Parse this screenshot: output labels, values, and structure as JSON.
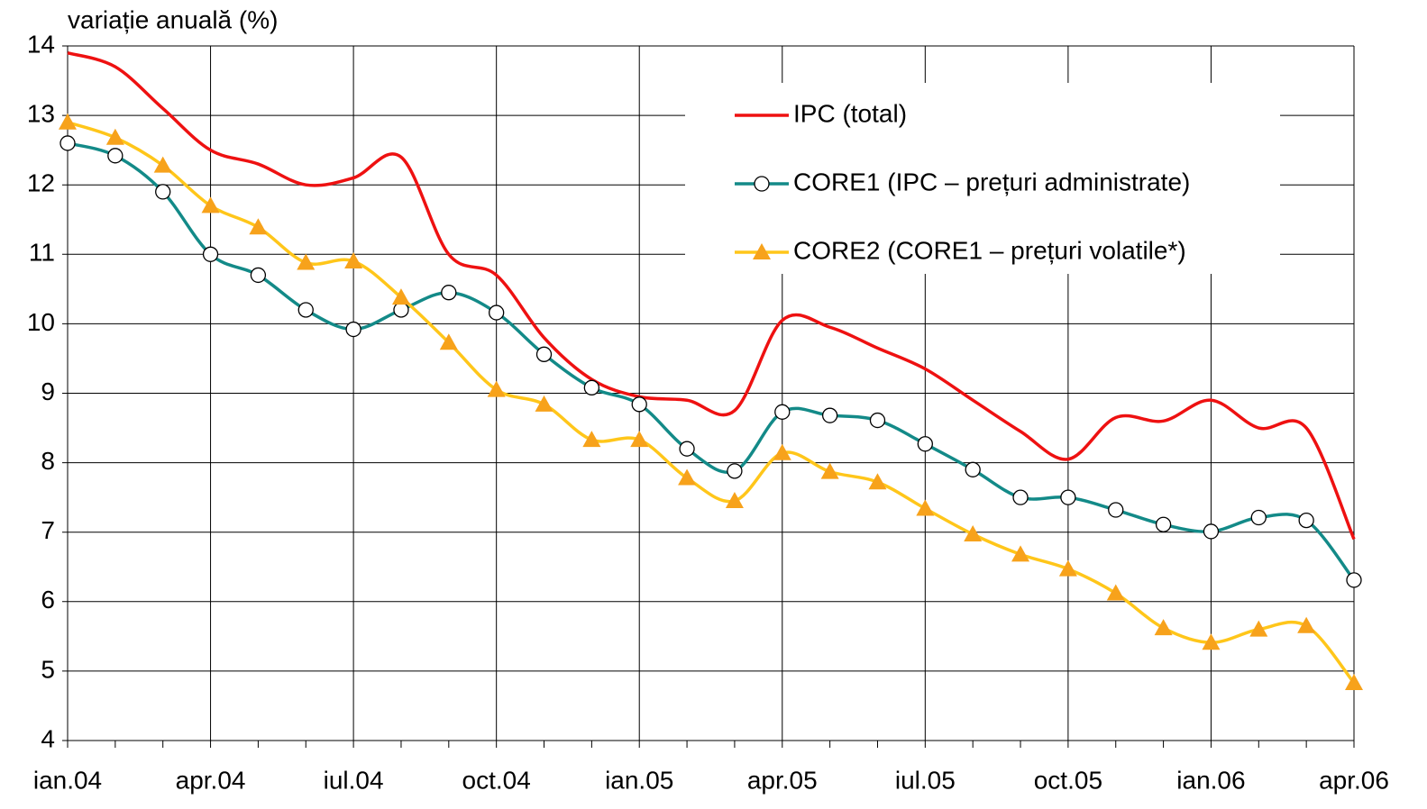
{
  "chart_data": {
    "type": "line",
    "ylabel": "variație anuală (%)",
    "categories": [
      "ian.04",
      null,
      null,
      "apr.04",
      null,
      null,
      "iul.04",
      null,
      null,
      "oct.04",
      null,
      null,
      "ian.05",
      null,
      null,
      "apr.05",
      null,
      null,
      "iul.05",
      null,
      null,
      "oct.05",
      null,
      null,
      "ian.06",
      null,
      null,
      "apr.06"
    ],
    "ylim": [
      4,
      14
    ],
    "yticks": [
      4,
      5,
      6,
      7,
      8,
      9,
      10,
      11,
      12,
      13,
      14
    ],
    "grid": true,
    "legend": "upper right",
    "series": [
      {
        "name": "IPC (total)",
        "color": "#ee1111",
        "marker": "none",
        "values": [
          13.9,
          13.7,
          13.1,
          12.5,
          12.3,
          12.0,
          12.1,
          12.4,
          11.0,
          10.7,
          9.8,
          9.2,
          8.95,
          8.9,
          8.75,
          10.05,
          9.95,
          9.65,
          9.35,
          8.9,
          8.45,
          8.05,
          8.65,
          8.6,
          8.9,
          8.5,
          8.5,
          6.9
        ]
      },
      {
        "name": "CORE1 (IPC – prețuri administrate)",
        "color": "#138a88",
        "marker": "circle",
        "values": [
          12.6,
          12.42,
          11.9,
          11.0,
          10.7,
          10.2,
          9.92,
          10.2,
          10.45,
          10.16,
          9.56,
          9.08,
          8.84,
          8.2,
          7.88,
          8.73,
          8.68,
          8.61,
          8.27,
          7.9,
          7.5,
          7.5,
          7.32,
          7.11,
          7.01,
          7.21,
          7.17,
          6.31
        ]
      },
      {
        "name": "CORE2 (CORE1 – prețuri volatile*)",
        "color": "#ffc61a",
        "marker": "triangle",
        "marker_color": "#f7a21b",
        "values": [
          12.9,
          12.68,
          12.28,
          11.7,
          11.39,
          10.88,
          10.9,
          10.38,
          9.73,
          9.05,
          8.84,
          8.33,
          8.33,
          7.78,
          7.45,
          8.14,
          7.87,
          7.72,
          7.34,
          6.97,
          6.68,
          6.47,
          6.12,
          5.62,
          5.41,
          5.6,
          5.65,
          4.83
        ]
      }
    ]
  }
}
